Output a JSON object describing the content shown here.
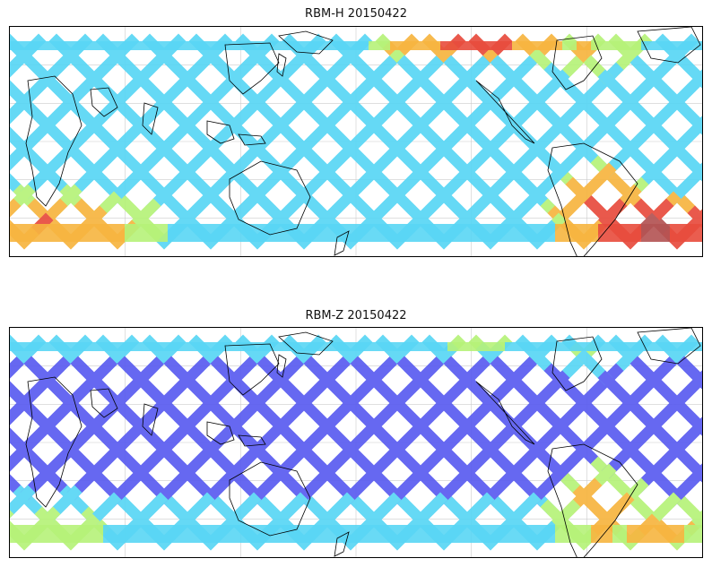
{
  "panels": [
    {
      "title": "RBM-H 20150422",
      "colormap": "jet",
      "hotspots": [
        {
          "region": "south-atlantic-east",
          "level": 1.0
        },
        {
          "region": "south-atlantic-west",
          "level": 0.85
        },
        {
          "region": "southern-indian",
          "level": 0.75
        },
        {
          "region": "north-pacific-east",
          "level": 0.85
        },
        {
          "region": "north-atlantic-west",
          "level": 0.6
        }
      ],
      "background_level": 0.1
    },
    {
      "title": "RBM-Z 20150422",
      "colormap": "jet",
      "hotspots": [
        {
          "region": "south-atlantic-east",
          "level": 0.6
        },
        {
          "region": "south-atlantic-west",
          "level": 0.7
        },
        {
          "region": "southern-indian",
          "level": 0.4
        },
        {
          "region": "north-pacific-east",
          "level": 0.35
        },
        {
          "region": "north-atlantic-west",
          "level": 0.35
        }
      ],
      "background_level": 0.08
    }
  ],
  "colors": {
    "low": "#5a5cf0",
    "mid_low": "#59d6f5",
    "mid": "#b6f279",
    "mid_high": "#f7b540",
    "high": "#e84c3d",
    "saturated": "#b35353",
    "coastline": "#000000",
    "grid": "#cccccc"
  }
}
